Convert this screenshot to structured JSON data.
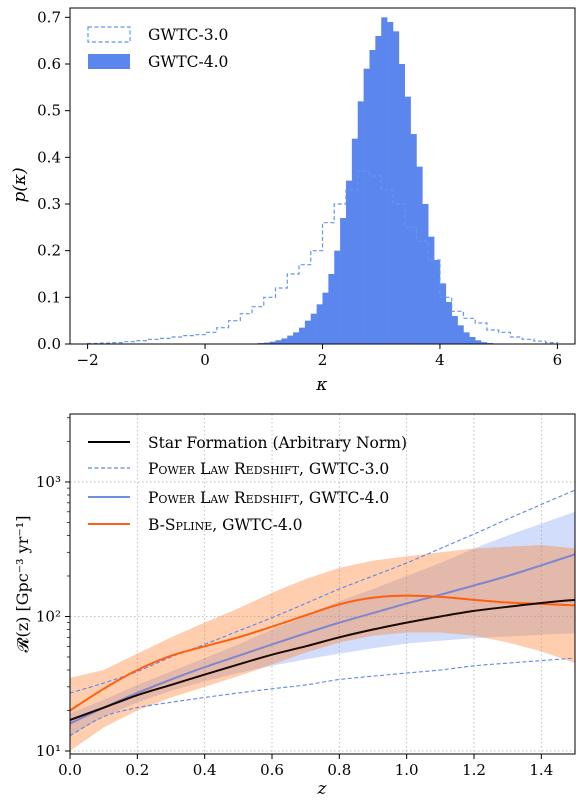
{
  "chart_data": [
    {
      "type": "histogram",
      "xlabel": "κ",
      "ylabel": "p(κ)",
      "xlim": [
        -2.3,
        6.3
      ],
      "ylim": [
        0,
        0.72
      ],
      "xticks": [
        -2,
        0,
        2,
        4,
        6
      ],
      "xtick_labels": [
        "−2",
        "0",
        "2",
        "4",
        "6"
      ],
      "yticks": [
        0.0,
        0.1,
        0.2,
        0.3,
        0.4,
        0.5,
        0.6,
        0.7
      ],
      "ytick_labels": [
        "0.0",
        "0.1",
        "0.2",
        "0.3",
        "0.4",
        "0.5",
        "0.6",
        "0.7"
      ],
      "legend_position": "upper-left",
      "series": [
        {
          "name": "GWTC-3.0",
          "style": "step-dashed",
          "color": "#6495ED",
          "bin_edges": [
            -2.0,
            -1.8,
            -1.6,
            -1.4,
            -1.2,
            -1.0,
            -0.8,
            -0.6,
            -0.4,
            -0.2,
            0.0,
            0.2,
            0.4,
            0.6,
            0.8,
            1.0,
            1.2,
            1.4,
            1.6,
            1.8,
            2.0,
            2.2,
            2.4,
            2.6,
            2.8,
            3.0,
            3.2,
            3.4,
            3.6,
            3.8,
            4.0,
            4.2,
            4.4,
            4.6,
            4.8,
            5.0,
            5.2,
            5.4,
            5.6,
            5.8,
            6.0
          ],
          "values": [
            0.001,
            0.002,
            0.003,
            0.005,
            0.007,
            0.01,
            0.012,
            0.015,
            0.018,
            0.02,
            0.025,
            0.035,
            0.05,
            0.065,
            0.08,
            0.1,
            0.12,
            0.15,
            0.17,
            0.2,
            0.26,
            0.3,
            0.33,
            0.37,
            0.36,
            0.33,
            0.3,
            0.25,
            0.22,
            0.18,
            0.1,
            0.07,
            0.055,
            0.045,
            0.03,
            0.025,
            0.015,
            0.01,
            0.006,
            0.003
          ]
        },
        {
          "name": "GWTC-4.0",
          "style": "filled",
          "color": "#5B86EE",
          "bin_edges": [
            0.8,
            0.9,
            1.0,
            1.1,
            1.2,
            1.3,
            1.4,
            1.5,
            1.6,
            1.7,
            1.8,
            1.9,
            2.0,
            2.1,
            2.2,
            2.3,
            2.4,
            2.5,
            2.6,
            2.7,
            2.8,
            2.9,
            3.0,
            3.1,
            3.2,
            3.3,
            3.4,
            3.5,
            3.6,
            3.7,
            3.8,
            3.9,
            4.0,
            4.1,
            4.2,
            4.3,
            4.4,
            4.5,
            4.6,
            4.7,
            4.8,
            4.9,
            5.0
          ],
          "values": [
            0.001,
            0.002,
            0.003,
            0.005,
            0.008,
            0.012,
            0.018,
            0.025,
            0.035,
            0.05,
            0.065,
            0.085,
            0.11,
            0.15,
            0.2,
            0.27,
            0.35,
            0.44,
            0.52,
            0.59,
            0.63,
            0.66,
            0.7,
            0.69,
            0.67,
            0.6,
            0.53,
            0.45,
            0.38,
            0.3,
            0.23,
            0.18,
            0.13,
            0.09,
            0.06,
            0.04,
            0.025,
            0.015,
            0.008,
            0.004,
            0.002,
            0.001
          ]
        }
      ]
    },
    {
      "type": "line",
      "xlabel": "z",
      "ylabel": "𝓡(z) [Gpc⁻³ yr⁻¹]",
      "xlim": [
        0.0,
        1.5
      ],
      "ylim": [
        9.5,
        3200
      ],
      "yscale": "log",
      "grid": true,
      "xticks": [
        0.0,
        0.2,
        0.4,
        0.6,
        0.8,
        1.0,
        1.2,
        1.4
      ],
      "xtick_labels": [
        "0.0",
        "0.2",
        "0.4",
        "0.6",
        "0.8",
        "1.0",
        "1.2",
        "1.4"
      ],
      "yticks": [
        10,
        100,
        1000
      ],
      "ytick_labels": [
        "10¹",
        "10²",
        "10³"
      ],
      "legend_position": "upper-left",
      "series": [
        {
          "name": "Star Formation (Arbitrary Norm)",
          "color": "#000000",
          "style": "solid",
          "x": [
            0.0,
            0.1,
            0.2,
            0.3,
            0.4,
            0.5,
            0.6,
            0.7,
            0.8,
            0.9,
            1.0,
            1.1,
            1.2,
            1.3,
            1.4,
            1.5
          ],
          "y": [
            17,
            21,
            26,
            31,
            37,
            44,
            52,
            60,
            70,
            80,
            90,
            100,
            110,
            118,
            126,
            133
          ]
        },
        {
          "name": "Power Law Redshift, GWTC-3.0",
          "color": "#5B86EE",
          "style": "dashed-band",
          "x": [
            0.0,
            0.1,
            0.2,
            0.3,
            0.4,
            0.5,
            0.6,
            0.7,
            0.8,
            0.9,
            1.0,
            1.1,
            1.2,
            1.3,
            1.4,
            1.5
          ],
          "lower": [
            13,
            18,
            21,
            23,
            25,
            27,
            29,
            31,
            34,
            36,
            38,
            40,
            43,
            45,
            47,
            49
          ],
          "upper": [
            27,
            32,
            39,
            50,
            62,
            78,
            98,
            125,
            160,
            200,
            250,
            320,
            410,
            530,
            680,
            870
          ]
        },
        {
          "name": "Power Law Redshift, GWTC-4.0",
          "color": "#6E8EE6",
          "style": "solid-band",
          "x": [
            0.0,
            0.1,
            0.2,
            0.3,
            0.4,
            0.5,
            0.6,
            0.7,
            0.8,
            0.9,
            1.0,
            1.1,
            1.2,
            1.3,
            1.4,
            1.5
          ],
          "y": [
            16,
            21,
            27,
            34,
            42,
            51,
            62,
            75,
            90,
            106,
            125,
            145,
            170,
            200,
            240,
            290
          ],
          "lower": [
            13,
            18,
            23,
            28,
            33,
            38,
            43,
            48,
            53,
            58,
            63,
            66,
            69,
            71,
            73,
            75
          ],
          "upper": [
            19,
            24,
            31,
            39,
            49,
            62,
            80,
            100,
            130,
            160,
            200,
            250,
            320,
            400,
            490,
            600
          ]
        },
        {
          "name": "B-Spline, GWTC-4.0",
          "color": "#FF5F0E",
          "style": "solid-band",
          "x": [
            0.0,
            0.1,
            0.2,
            0.3,
            0.4,
            0.5,
            0.6,
            0.7,
            0.8,
            0.9,
            1.0,
            1.1,
            1.2,
            1.3,
            1.4,
            1.5
          ],
          "y": [
            20,
            29,
            40,
            51,
            60,
            70,
            84,
            102,
            123,
            138,
            143,
            140,
            133,
            127,
            124,
            121
          ],
          "lower": [
            10,
            15,
            20,
            25,
            30,
            36,
            44,
            54,
            64,
            72,
            76,
            76,
            72,
            64,
            55,
            45
          ],
          "upper": [
            35,
            40,
            53,
            70,
            90,
            115,
            150,
            190,
            230,
            260,
            280,
            300,
            320,
            330,
            340,
            320
          ]
        }
      ]
    }
  ]
}
